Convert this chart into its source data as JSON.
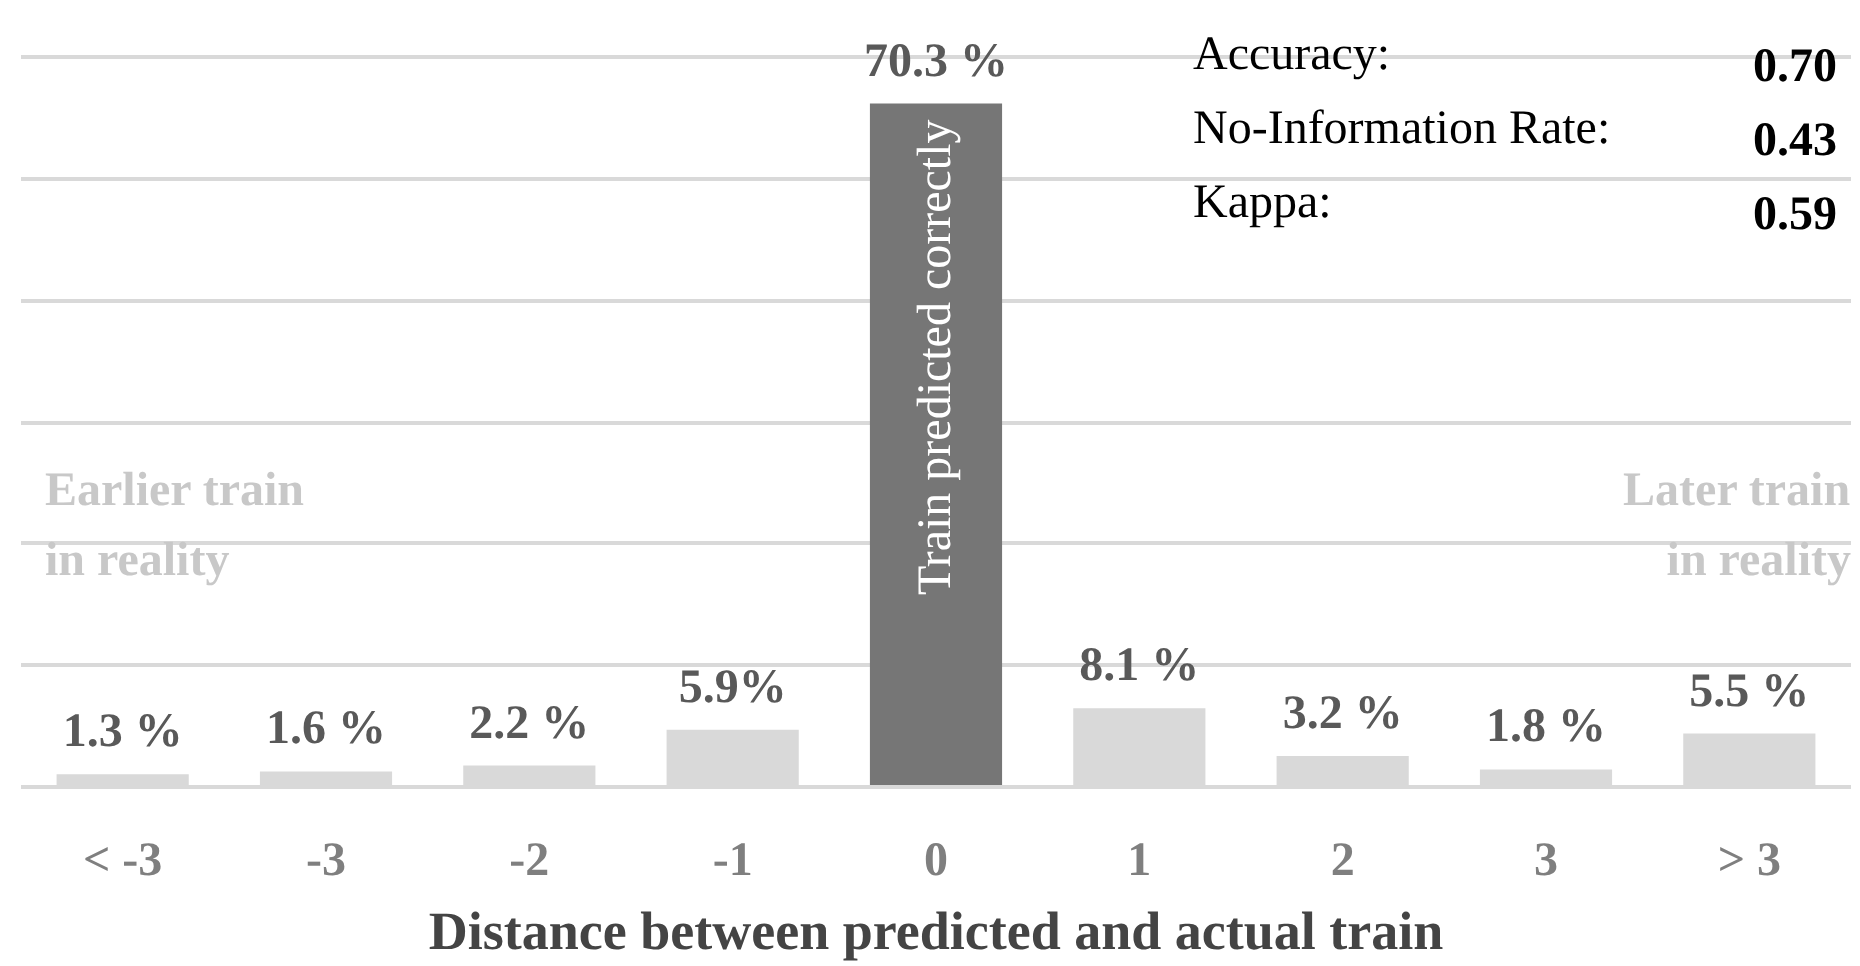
{
  "chart_data": {
    "type": "bar",
    "xlabel": "Distance between predicted and actual train",
    "categories": [
      "< -3",
      "-3",
      "-2",
      "-1",
      "0",
      "1",
      "2",
      "3",
      "> 3"
    ],
    "values": [
      1.3,
      1.6,
      2.2,
      5.9,
      70.3,
      8.1,
      3.2,
      1.8,
      5.5
    ],
    "value_labels": [
      "1.3 %",
      "1.6 %",
      "2.2 %",
      "5.9%",
      "70.3 %",
      "8.1 %",
      "3.2 %",
      "1.8 %",
      "5.5 %"
    ],
    "colors": [
      "#d9d9d9",
      "#d9d9d9",
      "#d9d9d9",
      "#d9d9d9",
      "#767676",
      "#d9d9d9",
      "#d9d9d9",
      "#d9d9d9",
      "#d9d9d9"
    ],
    "yticks": [
      {
        "value": 0,
        "label": null
      },
      {
        "value": 12.5,
        "label": null
      },
      {
        "value": 25,
        "label": null
      },
      {
        "value": 37.5,
        "label": null
      },
      {
        "value": 50,
        "label": null
      },
      {
        "value": 62.5,
        "label": null
      },
      {
        "value": 75,
        "label": null
      }
    ],
    "grid": "y",
    "tick_labels": "x",
    "annotations": [
      "Earlier train\nin reality",
      "Later train\nin reality",
      "Train predicted correctly",
      "Accuracy:",
      "0.70",
      "No-Information Rate:",
      "0.43",
      "Kappa:",
      "0.59"
    ]
  }
}
